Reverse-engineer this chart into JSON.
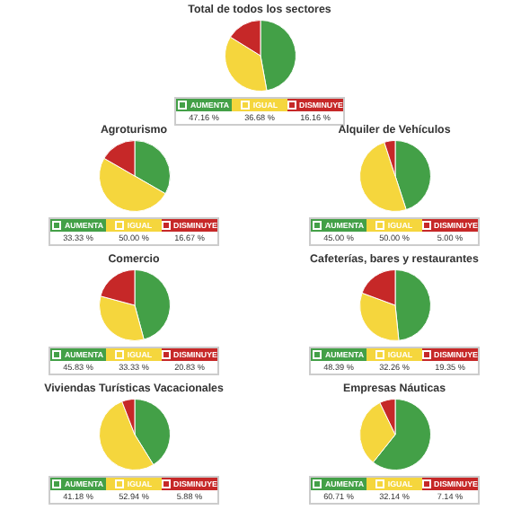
{
  "chart_data": [
    {
      "type": "pie",
      "title": "Total de todos los sectores",
      "categories": [
        "AUMENTA",
        "IGUAL",
        "DISMINUYE"
      ],
      "values": [
        47.16,
        36.68,
        16.16
      ],
      "value_labels": [
        "47.16 %",
        "36.68 %",
        "16.16 %"
      ],
      "colors": [
        "#43a047",
        "#f5d63d",
        "#c62828"
      ],
      "legend": "bottom"
    },
    {
      "type": "pie",
      "title": "Agroturismo",
      "categories": [
        "AUMENTA",
        "IGUAL",
        "DISMINUYE"
      ],
      "values": [
        33.33,
        50.0,
        16.67
      ],
      "value_labels": [
        "33.33 %",
        "50.00 %",
        "16.67 %"
      ],
      "colors": [
        "#43a047",
        "#f5d63d",
        "#c62828"
      ],
      "legend": "bottom"
    },
    {
      "type": "pie",
      "title": "Alquiler de Vehículos",
      "categories": [
        "AUMENTA",
        "IGUAL",
        "DISMINUYE"
      ],
      "values": [
        45.0,
        50.0,
        5.0
      ],
      "value_labels": [
        "45.00 %",
        "50.00 %",
        "5.00 %"
      ],
      "colors": [
        "#43a047",
        "#f5d63d",
        "#c62828"
      ],
      "legend": "bottom"
    },
    {
      "type": "pie",
      "title": "Comercio",
      "categories": [
        "AUMENTA",
        "IGUAL",
        "DISMINUYE"
      ],
      "values": [
        45.83,
        33.33,
        20.83
      ],
      "value_labels": [
        "45.83 %",
        "33.33 %",
        "20.83 %"
      ],
      "colors": [
        "#43a047",
        "#f5d63d",
        "#c62828"
      ],
      "legend": "bottom"
    },
    {
      "type": "pie",
      "title": "Cafeterías, bares y restaurantes",
      "categories": [
        "AUMENTA",
        "IGUAL",
        "DISMINUYE"
      ],
      "values": [
        48.39,
        32.26,
        19.35
      ],
      "value_labels": [
        "48.39 %",
        "32.26 %",
        "19.35 %"
      ],
      "colors": [
        "#43a047",
        "#f5d63d",
        "#c62828"
      ],
      "legend": "bottom"
    },
    {
      "type": "pie",
      "title": "Viviendas Turísticas Vacacionales",
      "categories": [
        "AUMENTA",
        "IGUAL",
        "DISMINUYE"
      ],
      "values": [
        41.18,
        52.94,
        5.88
      ],
      "value_labels": [
        "41.18 %",
        "52.94 %",
        "5.88 %"
      ],
      "colors": [
        "#43a047",
        "#f5d63d",
        "#c62828"
      ],
      "legend": "bottom"
    },
    {
      "type": "pie",
      "title": "Empresas Náuticas",
      "categories": [
        "AUMENTA",
        "IGUAL",
        "DISMINUYE"
      ],
      "values": [
        60.71,
        32.14,
        7.14
      ],
      "value_labels": [
        "60.71 %",
        "32.14 %",
        "7.14 %"
      ],
      "colors": [
        "#43a047",
        "#f5d63d",
        "#c62828"
      ],
      "legend": "bottom"
    }
  ]
}
